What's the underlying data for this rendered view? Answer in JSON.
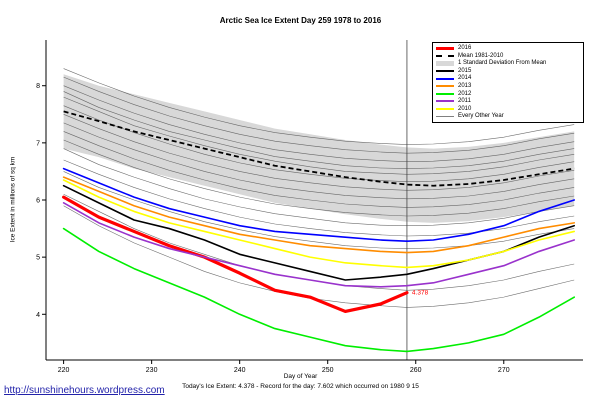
{
  "title": "Arctic Sea Ice Extent Day 259 1978 to 2016",
  "footer": {
    "summary": "Today's Ice Extent: 4.378  -  Record for the day: 7.602 which occurred on 1980 9 15",
    "url": "http://sunshinehours.wordpress.com"
  },
  "chart_data": {
    "type": "line",
    "title": "Arctic Sea Ice Extent Day 259 1978 to 2016",
    "xlabel": "Day of Year",
    "ylabel": "Ice Extent in millions of sq km",
    "xlim": [
      218,
      279
    ],
    "ylim": [
      3.2,
      8.8
    ],
    "x_ticks": [
      220,
      230,
      240,
      250,
      260,
      270
    ],
    "y_ticks": [
      4,
      5,
      6,
      7,
      8
    ],
    "grid": false,
    "legend_position": "top-right",
    "marker_day": 259,
    "annotation": {
      "x": 259,
      "y": 4.378,
      "text": "4.378",
      "color": "#ff0000"
    },
    "x": [
      220,
      224,
      228,
      232,
      236,
      240,
      244,
      248,
      252,
      256,
      259,
      262,
      266,
      270,
      274,
      278
    ],
    "band": {
      "name": "1 Standard Deviation From Mean",
      "color": "#d8d8d8",
      "upper": [
        8.2,
        8.0,
        7.85,
        7.7,
        7.55,
        7.4,
        7.25,
        7.15,
        7.05,
        6.97,
        6.92,
        6.9,
        6.93,
        7.0,
        7.1,
        7.2
      ],
      "lower": [
        6.9,
        6.75,
        6.55,
        6.4,
        6.25,
        6.1,
        5.95,
        5.85,
        5.75,
        5.67,
        5.62,
        5.6,
        5.63,
        5.7,
        5.8,
        5.9
      ]
    },
    "mean": {
      "name": "Mean 1981-2010",
      "color": "#000000",
      "style": "dashed",
      "values": [
        7.55,
        7.38,
        7.2,
        7.05,
        6.9,
        6.75,
        6.6,
        6.5,
        6.4,
        6.32,
        6.27,
        6.25,
        6.28,
        6.35,
        6.45,
        6.55
      ]
    },
    "series": [
      {
        "name": "2016",
        "color": "#ff0000",
        "width": 3.2,
        "values": [
          6.05,
          5.7,
          5.45,
          5.2,
          5.0,
          4.72,
          4.42,
          4.3,
          4.05,
          4.18,
          4.378,
          null,
          null,
          null,
          null,
          null
        ]
      },
      {
        "name": "2015",
        "color": "#000000",
        "width": 1.6,
        "values": [
          6.25,
          5.95,
          5.65,
          5.5,
          5.3,
          5.05,
          4.9,
          4.75,
          4.6,
          4.65,
          4.7,
          4.8,
          4.95,
          5.1,
          5.35,
          5.55
        ]
      },
      {
        "name": "2014",
        "color": "#0000ff",
        "width": 1.6,
        "values": [
          6.55,
          6.3,
          6.05,
          5.85,
          5.7,
          5.55,
          5.45,
          5.4,
          5.35,
          5.3,
          5.28,
          5.3,
          5.4,
          5.55,
          5.8,
          6.0
        ]
      },
      {
        "name": "2013",
        "color": "#ff8c00",
        "width": 1.6,
        "values": [
          6.4,
          6.15,
          5.9,
          5.7,
          5.55,
          5.4,
          5.3,
          5.2,
          5.15,
          5.1,
          5.08,
          5.1,
          5.2,
          5.35,
          5.5,
          5.6
        ]
      },
      {
        "name": "2012",
        "color": "#00ee00",
        "width": 1.6,
        "values": [
          5.5,
          5.1,
          4.8,
          4.55,
          4.3,
          4.0,
          3.75,
          3.6,
          3.45,
          3.38,
          3.35,
          3.4,
          3.5,
          3.65,
          3.95,
          4.3
        ]
      },
      {
        "name": "2011",
        "color": "#9932cc",
        "width": 1.6,
        "values": [
          5.95,
          5.6,
          5.35,
          5.15,
          5.0,
          4.85,
          4.7,
          4.6,
          4.5,
          4.48,
          4.5,
          4.55,
          4.7,
          4.85,
          5.1,
          5.3
        ]
      },
      {
        "name": "2010",
        "color": "#ffff00",
        "width": 1.6,
        "values": [
          6.35,
          6.05,
          5.8,
          5.6,
          5.45,
          5.3,
          5.15,
          5.0,
          4.9,
          4.85,
          4.82,
          4.85,
          4.95,
          5.1,
          5.3,
          5.45
        ]
      }
    ],
    "background_series": {
      "name": "Every Other Year",
      "color": "#555555",
      "lines": [
        [
          8.3,
          8.05,
          7.82,
          7.62,
          7.45,
          7.3,
          7.18,
          7.1,
          7.03,
          6.99,
          6.97,
          6.98,
          7.02,
          7.1,
          7.22,
          7.32
        ],
        [
          8.15,
          7.9,
          7.67,
          7.47,
          7.3,
          7.15,
          7.03,
          6.95,
          6.88,
          6.84,
          6.82,
          6.83,
          6.87,
          6.95,
          7.07,
          7.17
        ],
        [
          8.0,
          7.75,
          7.52,
          7.32,
          7.15,
          7.0,
          6.88,
          6.8,
          6.73,
          6.69,
          6.67,
          6.68,
          6.72,
          6.8,
          6.92,
          7.02
        ],
        [
          7.9,
          7.62,
          7.4,
          7.2,
          7.05,
          6.9,
          6.76,
          6.68,
          6.6,
          6.56,
          6.55,
          6.56,
          6.6,
          6.68,
          6.8,
          6.9
        ],
        [
          7.8,
          7.55,
          7.3,
          7.12,
          6.95,
          6.8,
          6.68,
          6.58,
          6.5,
          6.47,
          6.45,
          6.46,
          6.5,
          6.58,
          6.7,
          6.8
        ],
        [
          7.65,
          7.4,
          7.18,
          6.98,
          6.8,
          6.65,
          6.53,
          6.45,
          6.38,
          6.34,
          6.32,
          6.33,
          6.37,
          6.45,
          6.57,
          6.67
        ],
        [
          7.5,
          7.25,
          7.02,
          6.82,
          6.65,
          6.5,
          6.38,
          6.3,
          6.23,
          6.19,
          6.17,
          6.18,
          6.22,
          6.3,
          6.42,
          6.52
        ],
        [
          7.35,
          7.1,
          6.88,
          6.68,
          6.5,
          6.35,
          6.23,
          6.15,
          6.08,
          6.04,
          6.02,
          6.03,
          6.07,
          6.15,
          6.27,
          6.37
        ],
        [
          7.2,
          6.95,
          6.72,
          6.52,
          6.35,
          6.2,
          6.08,
          6.0,
          5.93,
          5.89,
          5.87,
          5.88,
          5.92,
          6.0,
          6.12,
          6.22
        ],
        [
          7.05,
          6.8,
          6.57,
          6.37,
          6.2,
          6.05,
          5.93,
          5.85,
          5.78,
          5.74,
          5.72,
          5.73,
          5.77,
          5.85,
          5.97,
          6.07
        ],
        [
          6.9,
          6.62,
          6.4,
          6.2,
          6.02,
          5.88,
          5.76,
          5.68,
          5.6,
          5.56,
          5.55,
          5.56,
          5.6,
          5.68,
          5.8,
          5.9
        ],
        [
          6.7,
          6.45,
          6.22,
          6.02,
          5.85,
          5.7,
          5.58,
          5.5,
          5.43,
          5.39,
          5.37,
          5.38,
          5.42,
          5.5,
          5.62,
          5.72
        ],
        [
          6.5,
          6.22,
          6.0,
          5.8,
          5.62,
          5.48,
          5.36,
          5.28,
          5.2,
          5.16,
          5.15,
          5.16,
          5.2,
          5.28,
          5.4,
          5.5
        ],
        [
          6.1,
          5.8,
          5.5,
          5.25,
          5.05,
          4.85,
          4.7,
          4.6,
          4.5,
          4.45,
          4.42,
          4.44,
          4.5,
          4.6,
          4.75,
          4.88
        ],
        [
          5.9,
          5.55,
          5.25,
          5.0,
          4.75,
          4.55,
          4.4,
          4.28,
          4.2,
          4.15,
          4.12,
          4.14,
          4.2,
          4.3,
          4.45,
          4.6
        ]
      ]
    },
    "legend": [
      {
        "label": "2016",
        "color": "#ff0000",
        "style": "thick"
      },
      {
        "label": "Mean 1981-2010",
        "color": "#000000",
        "style": "dashed"
      },
      {
        "label": "1 Standard Deviation From Mean",
        "color": "#d8d8d8",
        "style": "band"
      },
      {
        "label": "2015",
        "color": "#000000",
        "style": "line"
      },
      {
        "label": "2014",
        "color": "#0000ff",
        "style": "line"
      },
      {
        "label": "2013",
        "color": "#ff8c00",
        "style": "line"
      },
      {
        "label": "2012",
        "color": "#00ee00",
        "style": "line"
      },
      {
        "label": "2011",
        "color": "#9932cc",
        "style": "line"
      },
      {
        "label": "2010",
        "color": "#ffff00",
        "style": "line"
      },
      {
        "label": "Every Other Year",
        "color": "#808080",
        "style": "thin"
      }
    ]
  }
}
